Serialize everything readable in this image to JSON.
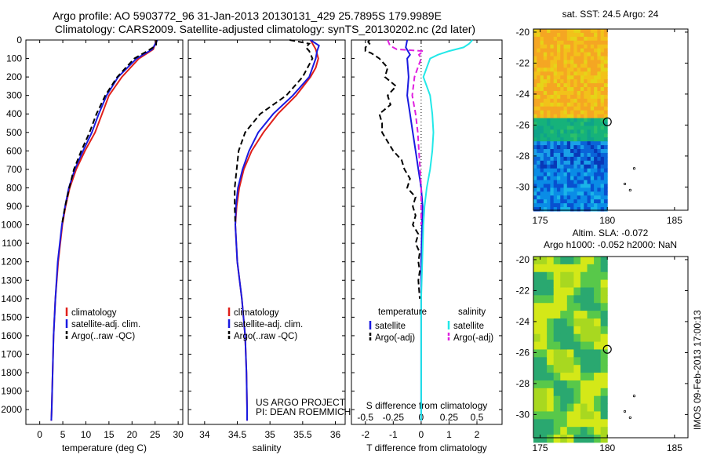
{
  "title_line1": "Argo profile: AO 5903772_96 31-Jan-2013 20130131_429 25.7895S 179.9989E",
  "title_line2": "Climatology: CARS2009. Satellite-adjusted climatology: synTS_20130202.nc (2d later)",
  "side_stamp": "IMOS 09-Feb-2013 17:00:13",
  "colors": {
    "clim": "#e0201a",
    "sat": "#1a1ae0",
    "argo": "#000000",
    "sat_sal": "#22e8e8",
    "argo_sal": "#e020e0"
  },
  "credit_line1": "US ARGO PROJECT",
  "credit_line2": "PI: DEAN ROEMMICH",
  "chart_data": [
    {
      "type": "line",
      "xlabel": "temperature (deg C)",
      "xlim": [
        -3,
        31
      ],
      "xticks": [
        "0",
        "5",
        "10",
        "15",
        "20",
        "25",
        "30"
      ],
      "ylim": [
        2080,
        0
      ],
      "yticks": [
        "0",
        "100",
        "200",
        "300",
        "400",
        "500",
        "600",
        "700",
        "800",
        "900",
        "1000",
        "1100",
        "1200",
        "1300",
        "1400",
        "1500",
        "1600",
        "1700",
        "1800",
        "1900",
        "2000"
      ],
      "legend": [
        "climatology",
        "satellite-adj. clim.",
        "Argo(..raw -QC)"
      ],
      "series": [
        {
          "name": "climatology",
          "style": "solid",
          "depth": [
            0,
            50,
            100,
            200,
            300,
            400,
            500,
            600,
            700,
            800,
            900,
            1000,
            1200,
            1400,
            1600,
            1800,
            2000,
            2060
          ],
          "values": [
            25.3,
            24.6,
            21.5,
            17.8,
            15.0,
            13.5,
            12.0,
            9.8,
            7.9,
            6.5,
            5.6,
            4.9,
            4.0,
            3.4,
            3.0,
            2.8,
            2.6,
            2.5
          ]
        },
        {
          "name": "satellite-adj. clim.",
          "style": "solid",
          "depth": [
            0,
            50,
            100,
            200,
            300,
            400,
            500,
            600,
            700,
            800,
            900,
            1000,
            1200,
            1400,
            1600,
            1800,
            2000,
            2060
          ],
          "values": [
            25.5,
            24.4,
            21.0,
            17.0,
            14.5,
            12.8,
            11.3,
            9.4,
            7.6,
            6.3,
            5.5,
            4.8,
            3.9,
            3.4,
            3.0,
            2.8,
            2.6,
            2.5
          ]
        },
        {
          "name": "Argo(..raw -QC)",
          "style": "dashed",
          "depth": [
            0,
            30,
            60,
            100,
            200,
            300,
            400,
            500,
            600,
            700,
            800,
            900,
            1000
          ],
          "values": [
            25.3,
            25.2,
            23.3,
            20.5,
            16.8,
            14.2,
            12.3,
            10.8,
            9.0,
            7.4,
            6.4,
            5.5,
            4.8
          ]
        }
      ]
    },
    {
      "type": "line",
      "xlabel": "salinity",
      "xlim": [
        33.75,
        36.15
      ],
      "xticks": [
        "34",
        "34.5",
        "35",
        "35.5",
        "36"
      ],
      "ylim": [
        2080,
        0
      ],
      "legend": [
        "climatology",
        "satellite-adj. clim.",
        "Argo(..raw -QC)"
      ],
      "series": [
        {
          "name": "climatology",
          "style": "solid",
          "depth": [
            0,
            50,
            100,
            150,
            200,
            300,
            400,
            500,
            600,
            700,
            800,
            900,
            1000,
            1200,
            1400,
            1600,
            1800,
            2000,
            2060
          ],
          "values": [
            35.62,
            35.7,
            35.74,
            35.7,
            35.62,
            35.4,
            35.12,
            34.9,
            34.72,
            34.6,
            34.53,
            34.49,
            34.47,
            34.5,
            34.57,
            34.62,
            34.64,
            34.65,
            34.65
          ]
        },
        {
          "name": "satellite-adj. clim.",
          "style": "solid",
          "depth": [
            0,
            30,
            60,
            100,
            200,
            300,
            400,
            500,
            600,
            700,
            800,
            900,
            1000,
            1200,
            1400,
            1600,
            1800,
            2000,
            2060
          ],
          "values": [
            35.62,
            35.75,
            35.72,
            35.7,
            35.6,
            35.35,
            35.05,
            34.82,
            34.68,
            34.58,
            34.51,
            34.48,
            34.47,
            34.5,
            34.57,
            34.62,
            34.64,
            34.65,
            34.65
          ]
        },
        {
          "name": "Argo(..raw -QC)",
          "style": "dashed",
          "depth": [
            0,
            20,
            40,
            60,
            100,
            200,
            300,
            400,
            500,
            600,
            700,
            800,
            900,
            1000
          ],
          "values": [
            35.3,
            35.6,
            35.55,
            35.6,
            35.65,
            35.5,
            35.25,
            34.85,
            34.62,
            34.52,
            34.49,
            34.46,
            34.46,
            34.47
          ]
        }
      ]
    },
    {
      "type": "line",
      "xlabel": "T difference from climatology",
      "xlabel_top": "S difference from climatology",
      "xlim": [
        -2.5,
        2.9
      ],
      "xticks": [
        "-2",
        "-1",
        "0",
        "1",
        "2"
      ],
      "top_xlim": [
        -0.625,
        0.725
      ],
      "top_xticks": [
        "-0.5",
        "-0.25",
        "0",
        "0.25",
        "0.5"
      ],
      "ylim": [
        2080,
        0
      ],
      "legend_headers": [
        "temperature",
        "salinity"
      ],
      "legend": [
        "satellite",
        "Argo(-adj)",
        "satellite",
        "Argo(-adj)"
      ],
      "series": [
        {
          "name": "satellite",
          "style": "solid",
          "depth": [
            0,
            40,
            80,
            100,
            200,
            300,
            400,
            500,
            600,
            700,
            800,
            900,
            1000,
            1200,
            1400,
            1600,
            1800,
            2000,
            2060
          ],
          "values": [
            -0.5,
            -0.55,
            -0.4,
            -0.5,
            -0.45,
            -0.5,
            -0.4,
            -0.3,
            -0.2,
            -0.1,
            0,
            0.05,
            0.03,
            0,
            0,
            0,
            0,
            0,
            0
          ]
        },
        {
          "name": "Argo(-adj)",
          "style": "dashed",
          "depth": [
            0,
            10,
            20,
            40,
            60,
            70,
            80,
            100,
            150,
            200,
            250,
            300,
            350,
            400,
            450,
            500,
            550,
            600,
            650,
            700,
            750,
            800,
            850,
            900,
            950,
            1000,
            1050,
            1100,
            1150,
            1200,
            1250,
            1300,
            1400
          ],
          "values": [
            -1.85,
            -1.9,
            -1.85,
            -2.0,
            -2.0,
            -1.8,
            -1.7,
            -1.5,
            -1.2,
            -1.3,
            -0.9,
            -1.2,
            -1.1,
            -1.5,
            -1.4,
            -1.4,
            -1.2,
            -1.0,
            -0.7,
            -0.6,
            -0.4,
            -0.5,
            -0.2,
            -0.3,
            -0.2,
            -0.3,
            -0.1,
            -0.2,
            -0.05,
            -0.1,
            -0.05,
            -0.1,
            -0.05
          ]
        },
        {
          "name": "satellite",
          "style": "solid",
          "depth": [
            0,
            20,
            40,
            60,
            80,
            100,
            150,
            200,
            300,
            400,
            500,
            600,
            700,
            800,
            900,
            1000,
            1200,
            1400,
            1600,
            1800,
            2000,
            2060
          ],
          "values": [
            0.46,
            0.43,
            0.38,
            0.25,
            0.15,
            0.08,
            0.05,
            0.02,
            0.08,
            0.1,
            0.11,
            0.1,
            0.08,
            0.05,
            0.03,
            0.02,
            0.01,
            0,
            0,
            0,
            0,
            0
          ]
        },
        {
          "name": "Argo(-adj)",
          "style": "dashed",
          "depth": [
            0,
            30,
            50,
            60,
            80,
            100,
            150,
            200,
            300,
            400,
            500,
            600,
            700,
            800,
            900,
            1000
          ],
          "values": [
            -0.3,
            -0.28,
            -0.22,
            0.02,
            -0.02,
            0.0,
            -0.03,
            -0.06,
            -0.08,
            -0.05,
            -0.03,
            -0.02,
            -0.01,
            0,
            0,
            0
          ]
        }
      ]
    },
    {
      "type": "heatmap",
      "title": "sat. SST: 24.5  Argo: 24",
      "xlim": [
        174.5,
        186
      ],
      "xticks": [
        "175",
        "180",
        "185"
      ],
      "ylim": [
        -31.5,
        -19.8
      ],
      "yticks": [
        "-20",
        "-22",
        "-24",
        "-26",
        "-28",
        "-30"
      ],
      "profile_location": [
        179.9989,
        -25.7895
      ],
      "data_extent_lon": [
        174.5,
        180
      ],
      "colors_by_latitude": [
        {
          "lat": -20,
          "color": "orange-yellow"
        },
        {
          "lat": -25.5,
          "color": "green"
        },
        {
          "lat": -27.5,
          "color": "blue"
        },
        {
          "lat": -31.5,
          "color": "dark blue"
        }
      ]
    },
    {
      "type": "heatmap",
      "title_line1": "Altim. SLA: -0.072",
      "title_line2": "Argo h1000: -0.052 h2000: NaN",
      "xlim": [
        174.5,
        186
      ],
      "xticks": [
        "175",
        "180",
        "185"
      ],
      "ylim": [
        -31.5,
        -19.8
      ],
      "yticks": [
        "-20",
        "-22",
        "-24",
        "-26",
        "-28",
        "-30"
      ],
      "profile_location": [
        179.9989,
        -25.7895
      ],
      "data_extent_lon": [
        174.5,
        180
      ]
    }
  ]
}
